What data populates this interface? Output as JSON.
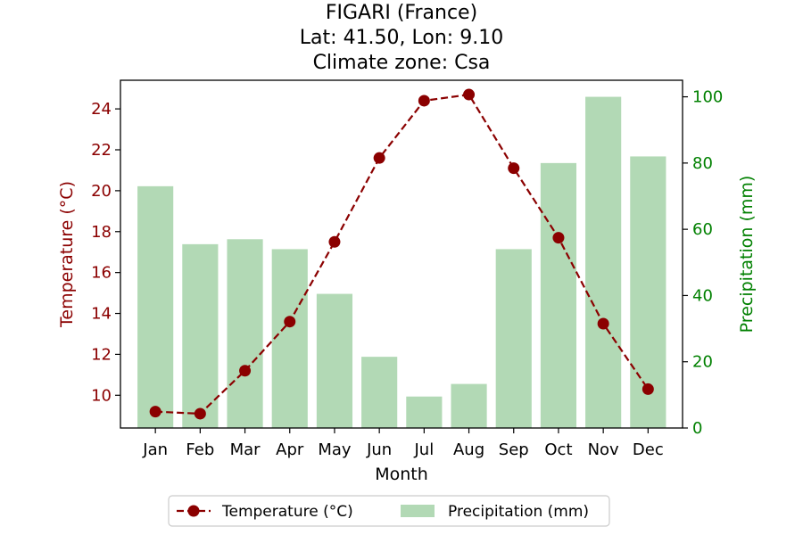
{
  "chart_data": {
    "type": "bar+line",
    "title_lines": [
      "FIGARI (France)",
      "Lat: 41.50, Lon: 9.10",
      "Climate zone: Csa"
    ],
    "xlabel": "Month",
    "categories": [
      "Jan",
      "Feb",
      "Mar",
      "Apr",
      "May",
      "Jun",
      "Jul",
      "Aug",
      "Sep",
      "Oct",
      "Nov",
      "Dec"
    ],
    "temperature": {
      "name": "Temperature (°C)",
      "axis": "left",
      "ylabel": "Temperature (°C)",
      "ylim": [
        8.4,
        25.4
      ],
      "ticks": [
        10,
        12,
        14,
        16,
        18,
        20,
        22,
        24
      ],
      "values": [
        9.2,
        9.1,
        11.2,
        13.6,
        17.5,
        21.6,
        24.4,
        24.7,
        21.1,
        17.7,
        13.5,
        10.3
      ],
      "color": "#8b0000",
      "style": "dashed line with circle markers"
    },
    "precipitation": {
      "name": "Precipitation (mm)",
      "axis": "right",
      "ylabel": "Precipitation (mm)",
      "ylim": [
        0,
        105
      ],
      "ticks": [
        0,
        20,
        40,
        60,
        80,
        100
      ],
      "values": [
        73,
        55.5,
        57,
        54,
        40.5,
        21.5,
        9.5,
        13.3,
        54,
        80,
        100,
        82
      ],
      "color": "#b2d9b5",
      "style": "bars"
    },
    "left_axis_color": "#8b0000",
    "right_axis_color": "#008000",
    "legend_position": "bottom-center",
    "grid": false
  }
}
